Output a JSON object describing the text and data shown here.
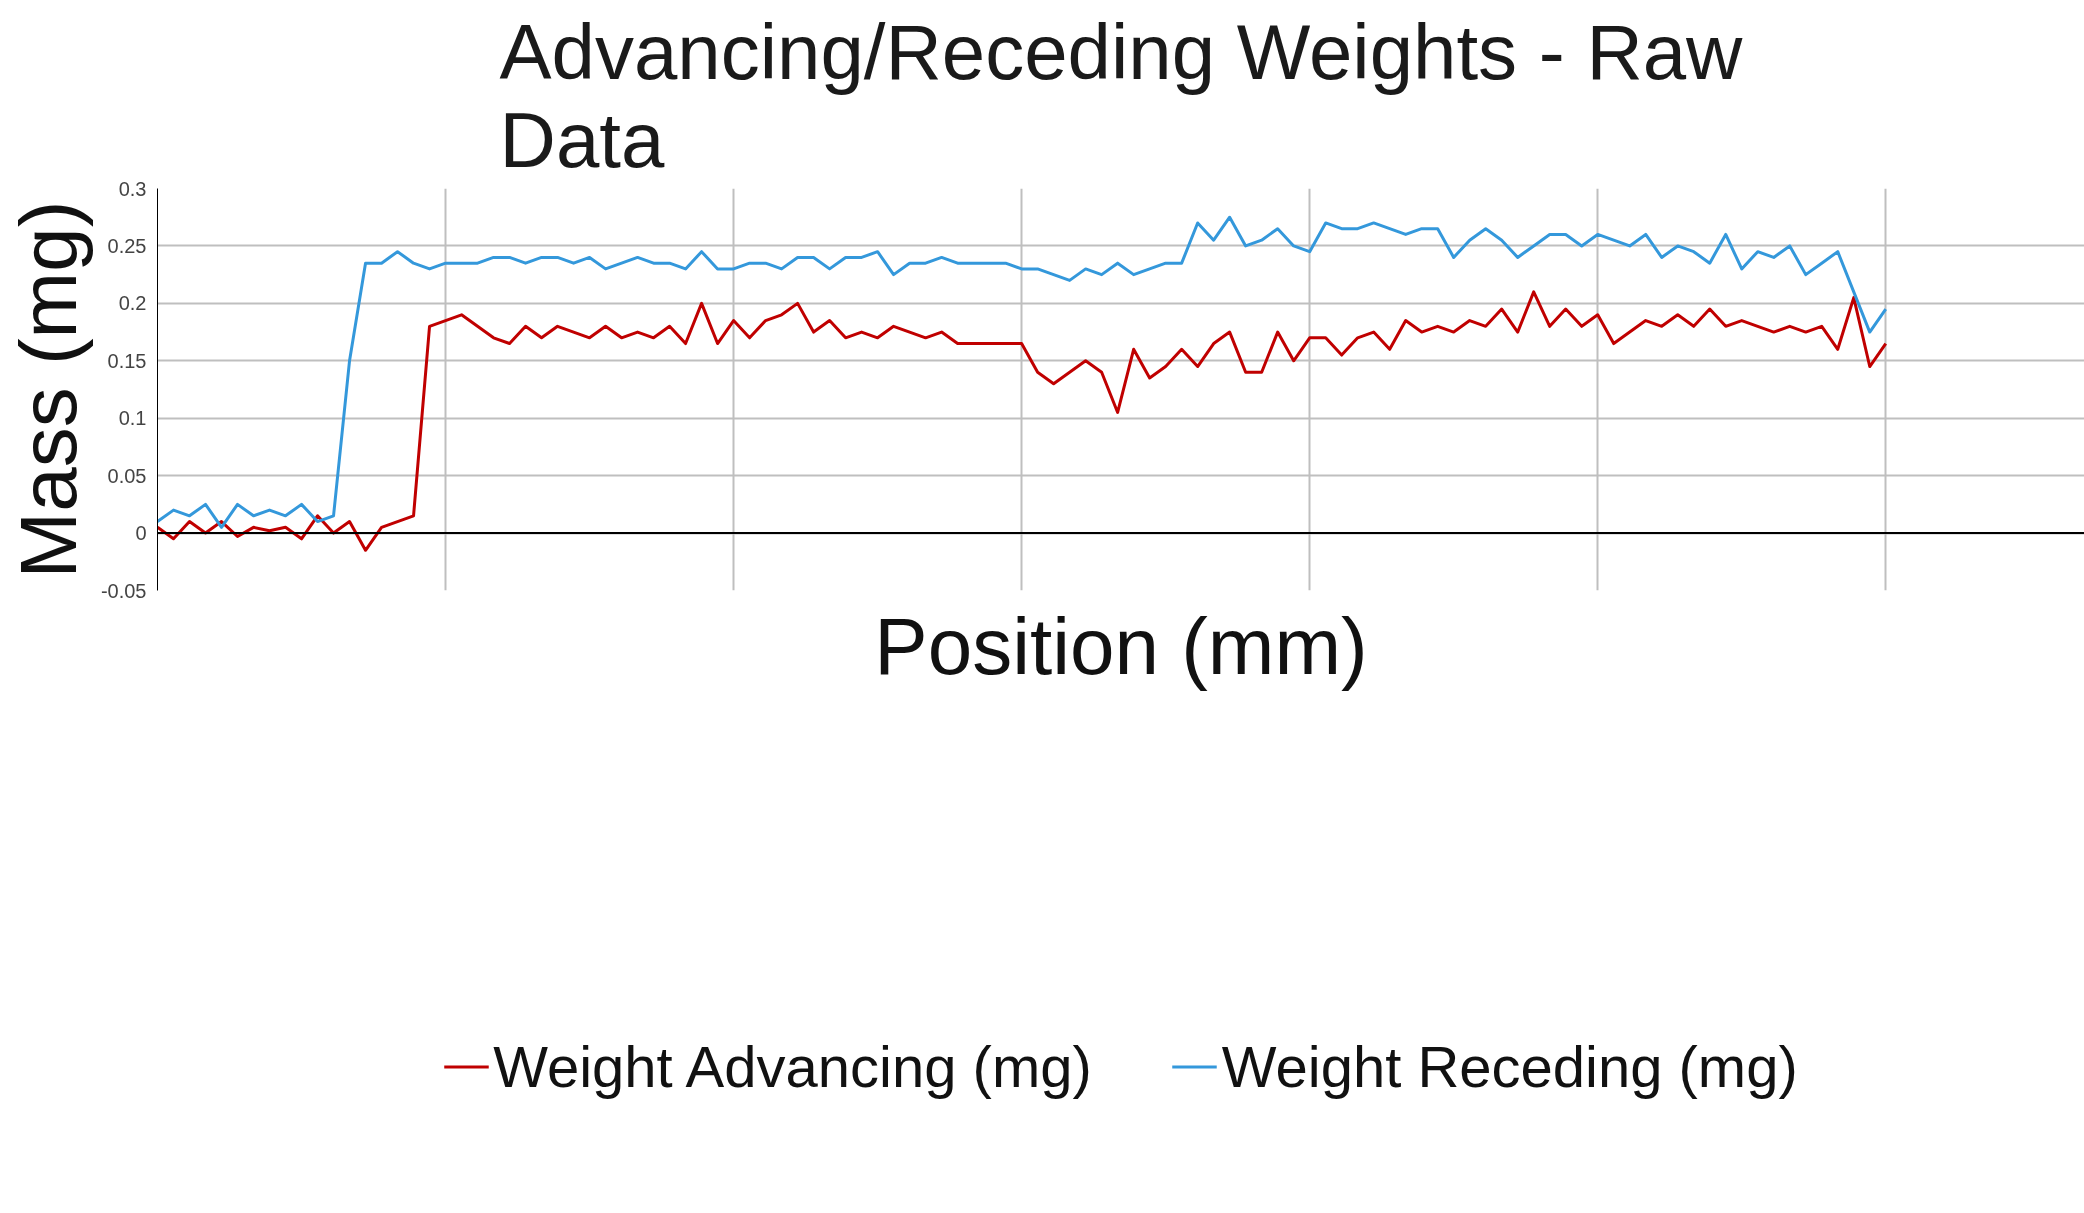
{
  "chart_data": {
    "type": "line",
    "title": "Advancing/Receding Weights - Raw Data",
    "xlabel": "Position (mm)",
    "ylabel": "Mass (mg)",
    "categories": [
      null,
      null,
      null,
      null,
      null,
      null,
      null,
      null,
      null,
      null,
      null,
      null,
      null,
      null,
      null,
      null,
      null,
      null,
      null,
      null,
      null,
      null,
      null,
      null,
      null,
      null,
      null,
      null,
      null,
      null,
      null,
      null,
      null,
      null,
      null,
      null,
      null,
      null,
      null,
      null,
      null,
      null,
      null,
      null,
      null,
      null,
      null,
      null,
      null,
      null,
      null,
      null,
      null,
      null,
      null,
      null,
      null,
      null,
      null,
      null,
      null,
      null,
      null,
      null,
      null,
      null,
      null,
      null,
      null,
      null,
      null,
      null,
      null,
      null,
      null,
      null,
      null,
      null,
      null,
      null,
      null,
      null,
      null,
      null,
      null,
      null,
      null,
      null,
      null,
      null,
      null,
      null,
      null,
      null,
      null,
      null,
      null,
      null,
      null,
      null,
      null,
      null,
      null,
      null,
      null,
      null,
      null,
      null,
      null
    ],
    "series": [
      {
        "name": "Weight Advancing (mg)",
        "color": "#c00000",
        "values": [
          0.005,
          -0.005,
          0.01,
          0,
          0.01,
          -0.003,
          0.005,
          0.002,
          0.005,
          -0.005,
          0.015,
          0,
          0.01,
          -0.015,
          0.005,
          0.01,
          0.015,
          0.18,
          0.185,
          0.19,
          0.18,
          0.17,
          0.165,
          0.18,
          0.17,
          0.18,
          0.175,
          0.17,
          0.18,
          0.17,
          0.175,
          0.17,
          0.18,
          0.165,
          0.2,
          0.165,
          0.185,
          0.17,
          0.185,
          0.19,
          0.2,
          0.175,
          0.185,
          0.17,
          0.175,
          0.17,
          0.18,
          0.175,
          0.17,
          0.175,
          0.165,
          0.165,
          0.165,
          0.165,
          0.165,
          0.14,
          0.13,
          0.14,
          0.15,
          0.14,
          0.105,
          0.16,
          0.135,
          0.145,
          0.16,
          0.145,
          0.165,
          0.175,
          0.14,
          0.14,
          0.175,
          0.15,
          0.17,
          0.17,
          0.155,
          0.17,
          0.175,
          0.16,
          0.185,
          0.175,
          0.18,
          0.175,
          0.185,
          0.18,
          0.195,
          0.175,
          0.21,
          0.18,
          0.195,
          0.18,
          0.19,
          0.165,
          0.175,
          0.185,
          0.18,
          0.19,
          0.18,
          0.195,
          0.18,
          0.185,
          0.18,
          0.175,
          0.18,
          0.175,
          0.18,
          0.16,
          0.205,
          0.145,
          0.165
        ]
      },
      {
        "name": "Weight Receding (mg)",
        "color": "#3498db",
        "values": [
          0.01,
          0.02,
          0.015,
          0.025,
          0.005,
          0.025,
          0.015,
          0.02,
          0.015,
          0.025,
          0.01,
          0.015,
          0.15,
          0.235,
          0.235,
          0.245,
          0.235,
          0.23,
          0.235,
          0.235,
          0.235,
          0.24,
          0.24,
          0.235,
          0.24,
          0.24,
          0.235,
          0.24,
          0.23,
          0.235,
          0.24,
          0.235,
          0.235,
          0.23,
          0.245,
          0.23,
          0.23,
          0.235,
          0.235,
          0.23,
          0.24,
          0.24,
          0.23,
          0.24,
          0.24,
          0.245,
          0.225,
          0.235,
          0.235,
          0.24,
          0.235,
          0.235,
          0.235,
          0.235,
          0.23,
          0.23,
          0.225,
          0.22,
          0.23,
          0.225,
          0.235,
          0.225,
          0.23,
          0.235,
          0.235,
          0.27,
          0.255,
          0.275,
          0.25,
          0.255,
          0.265,
          0.25,
          0.245,
          0.27,
          0.265,
          0.265,
          0.27,
          0.265,
          0.26,
          0.265,
          0.265,
          0.24,
          0.255,
          0.265,
          0.255,
          0.24,
          0.25,
          0.26,
          0.26,
          0.25,
          0.26,
          0.255,
          0.25,
          0.26,
          0.24,
          0.25,
          0.245,
          0.235,
          0.26,
          0.23,
          0.245,
          0.24,
          0.25,
          0.225,
          0.235,
          0.245,
          0.21,
          0.175,
          0.195
        ]
      }
    ],
    "ylim": [
      -0.05,
      0.3
    ],
    "yticks": [
      -0.05,
      0,
      0.05,
      0.1,
      0.15,
      0.2,
      0.25,
      0.3
    ],
    "ref_lines": [
      {
        "axis": "y",
        "value": 0,
        "color": "#000000"
      }
    ],
    "grid": true,
    "legend": "bottom",
    "tick_labels": "y"
  }
}
